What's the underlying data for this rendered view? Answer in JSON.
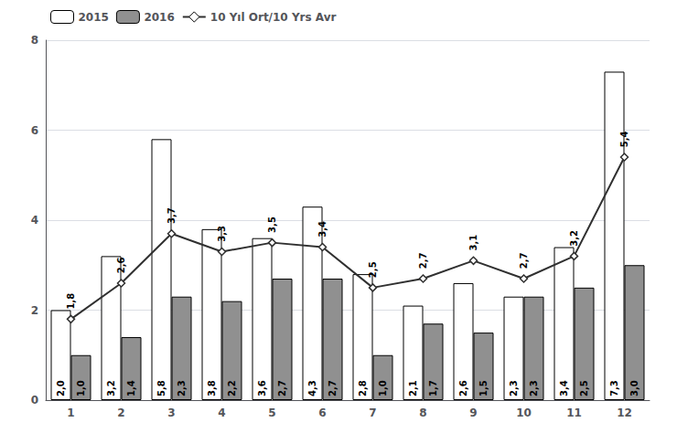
{
  "chart_data": {
    "type": "bar",
    "categories": [
      1,
      2,
      3,
      4,
      5,
      6,
      7,
      8,
      9,
      10,
      11,
      12
    ],
    "series": [
      {
        "name": "2015",
        "type": "bar",
        "color": "#ffffff",
        "values": [
          2.0,
          3.2,
          5.8,
          3.8,
          3.6,
          4.3,
          2.8,
          2.1,
          2.6,
          2.3,
          3.4,
          7.3
        ],
        "value_labels": [
          "2,0",
          "3,2",
          "5,8",
          "3,8",
          "3,6",
          "4,3",
          "2,8",
          "2,1",
          "2,6",
          "2,3",
          "3,4",
          "7,3"
        ]
      },
      {
        "name": "2016",
        "type": "bar",
        "color": "#909090",
        "values": [
          1.0,
          1.4,
          2.3,
          2.2,
          2.7,
          2.7,
          1.0,
          1.7,
          1.5,
          2.3,
          2.5,
          3.0
        ],
        "value_labels": [
          "1,0",
          "1,4",
          "2,3",
          "2,2",
          "2,7",
          "2,7",
          "1,0",
          "1,7",
          "1,5",
          "2,3",
          "2,5",
          "3,0"
        ]
      },
      {
        "name": "10 Yıl Ort/10 Yrs Avr",
        "type": "line",
        "color": "#303030",
        "marker": "diamond",
        "values": [
          1.8,
          2.6,
          3.7,
          3.3,
          3.5,
          3.4,
          2.5,
          2.7,
          3.1,
          2.7,
          3.2,
          5.4
        ],
        "value_labels": [
          "1,8",
          "2,6",
          "3,7",
          "3,3",
          "3,5",
          "3,4",
          "2,5",
          "2,7",
          "3,1",
          "2,7",
          "3,2",
          "5,4"
        ]
      }
    ],
    "ylim": [
      0,
      8
    ],
    "yticks": [
      0,
      2,
      4,
      6,
      8
    ],
    "grid": true,
    "legend": "upper left",
    "data_labels": true
  }
}
